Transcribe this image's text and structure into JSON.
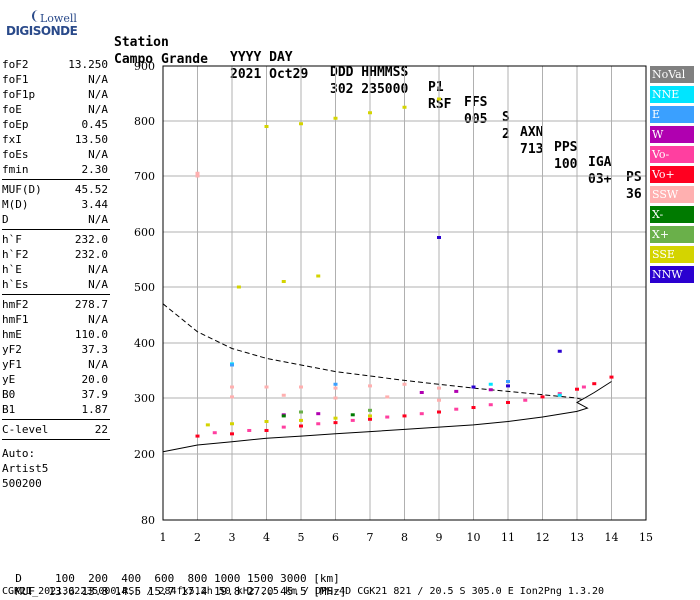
{
  "logo": {
    "line1": "Lowell",
    "line2": "DIGISONDE"
  },
  "header": {
    "cols": [
      {
        "top": "Station",
        "bottom": "Campo Grande"
      },
      {
        "top": "YYYY DAY",
        "bottom": "2021 Oct29"
      },
      {
        "top": "DDD HHMMSS",
        "bottom": "302 235000"
      },
      {
        "top": "P1",
        "bottom": "RSF"
      },
      {
        "top": "FFS",
        "bottom": "005"
      },
      {
        "top": "S",
        "bottom": "2"
      },
      {
        "top": "AXN",
        "bottom": "713"
      },
      {
        "top": "PPS",
        "bottom": "100"
      },
      {
        "top": "IGA",
        "bottom": "03+"
      },
      {
        "top": "PS",
        "bottom": "36"
      }
    ]
  },
  "params": {
    "group1": [
      {
        "k": "foF2",
        "v": "13.250"
      },
      {
        "k": "foF1",
        "v": "N/A"
      },
      {
        "k": "foF1p",
        "v": "N/A"
      },
      {
        "k": "foE",
        "v": "N/A"
      },
      {
        "k": "foEp",
        "v": "0.45"
      },
      {
        "k": "fxI",
        "v": "13.50"
      },
      {
        "k": "foEs",
        "v": "N/A"
      },
      {
        "k": "fmin",
        "v": "2.30"
      }
    ],
    "group2": [
      {
        "k": "MUF(D)",
        "v": "45.52"
      },
      {
        "k": "M(D)",
        "v": "3.44"
      },
      {
        "k": "D",
        "v": "N/A"
      }
    ],
    "group3": [
      {
        "k": "h`F",
        "v": "232.0"
      },
      {
        "k": "h`F2",
        "v": "232.0"
      },
      {
        "k": "h`E",
        "v": "N/A"
      },
      {
        "k": "h`Es",
        "v": "N/A"
      }
    ],
    "group4": [
      {
        "k": "hmF2",
        "v": "278.7"
      },
      {
        "k": "hmF1",
        "v": "N/A"
      },
      {
        "k": "hmE",
        "v": "110.0"
      },
      {
        "k": "yF2",
        "v": "37.3"
      },
      {
        "k": "yF1",
        "v": "N/A"
      },
      {
        "k": "yE",
        "v": "20.0"
      },
      {
        "k": "B0",
        "v": "37.9"
      },
      {
        "k": "B1",
        "v": "1.87"
      }
    ],
    "clevel": {
      "k": "C-level",
      "v": "22"
    },
    "auto": [
      "Auto:",
      "Artist5",
      "500200"
    ]
  },
  "legend": [
    {
      "label": "NoVal",
      "color": "#808080"
    },
    {
      "label": "NNE",
      "color": "#00e5ff"
    },
    {
      "label": "E",
      "color": "#3aa0ff"
    },
    {
      "label": "W",
      "color": "#b000b0"
    },
    {
      "label": "Vo-",
      "color": "#ff3fa0"
    },
    {
      "label": "Vo+",
      "color": "#ff0020"
    },
    {
      "label": "SSW",
      "color": "#ffb0b0"
    },
    {
      "label": "X-",
      "color": "#007a00"
    },
    {
      "label": "X+",
      "color": "#6ab04a"
    },
    {
      "label": "SSE",
      "color": "#d4d400"
    },
    {
      "label": "NNW",
      "color": "#2a00d0"
    }
  ],
  "footer": {
    "d_label": "D",
    "d_values": "100  200  400  600  800 1000 1500 3000 [km]",
    "muf_label": "MUF",
    "muf_values": "13.6 13.8 14.5 15.7 17.4 19.8 27.0 45.5 [MHz]",
    "file_line": "CGK21_2021302235000.RSF / 284fx512h 50 kHz 2.5 km / DPS-4D CGK21 821 / 20.5 S 305.0 E Ion2Png 1.3.20"
  },
  "chart_data": {
    "type": "scatter",
    "xlim": [
      1,
      15
    ],
    "ylim": [
      80,
      900
    ],
    "x_ticks": [
      1,
      2,
      3,
      4,
      5,
      6,
      7,
      8,
      9,
      10,
      11,
      12,
      13,
      14,
      15
    ],
    "y_ticks": [
      80,
      200,
      300,
      400,
      500,
      600,
      700,
      800,
      900
    ],
    "grid": true,
    "series": [
      {
        "name": "Vo+",
        "points": [
          [
            2.0,
            232
          ],
          [
            3.0,
            236
          ],
          [
            4.0,
            242
          ],
          [
            5.0,
            250
          ],
          [
            6.0,
            256
          ],
          [
            7.0,
            262
          ],
          [
            8.0,
            268
          ],
          [
            9.0,
            275
          ],
          [
            10.0,
            283
          ],
          [
            11.0,
            292
          ],
          [
            12.0,
            302
          ],
          [
            13.0,
            316
          ],
          [
            13.5,
            326
          ],
          [
            14.0,
            338
          ]
        ]
      },
      {
        "name": "Vo-",
        "points": [
          [
            2.5,
            238
          ],
          [
            3.5,
            242
          ],
          [
            4.5,
            248
          ],
          [
            5.5,
            254
          ],
          [
            6.5,
            260
          ],
          [
            7.5,
            266
          ],
          [
            8.5,
            272
          ],
          [
            9.5,
            280
          ],
          [
            10.5,
            288
          ],
          [
            11.5,
            296
          ],
          [
            12.5,
            308
          ],
          [
            13.2,
            320
          ]
        ]
      },
      {
        "name": "SSE",
        "points": [
          [
            2.3,
            252
          ],
          [
            3.0,
            254
          ],
          [
            4.0,
            258
          ],
          [
            5.0,
            260
          ],
          [
            6.0,
            264
          ],
          [
            7.0,
            268
          ],
          [
            4.0,
            790
          ],
          [
            5.0,
            795
          ],
          [
            6.0,
            805
          ],
          [
            7.0,
            815
          ],
          [
            8.0,
            825
          ],
          [
            9.0,
            840
          ],
          [
            3.2,
            500
          ],
          [
            4.5,
            510
          ],
          [
            5.5,
            520
          ]
        ]
      },
      {
        "name": "SSW",
        "points": [
          [
            3.0,
            320
          ],
          [
            4.0,
            320
          ],
          [
            5.0,
            320
          ],
          [
            6.0,
            318
          ],
          [
            7.0,
            322
          ],
          [
            8.0,
            325
          ],
          [
            9.0,
            318
          ],
          [
            3.0,
            302
          ],
          [
            4.5,
            305
          ],
          [
            6.0,
            300
          ],
          [
            7.5,
            302
          ],
          [
            9.0,
            296
          ],
          [
            2.0,
            700
          ],
          [
            2.0,
            705
          ]
        ]
      },
      {
        "name": "W",
        "points": [
          [
            8.5,
            310
          ],
          [
            9.5,
            312
          ],
          [
            10.5,
            315
          ],
          [
            4.5,
            270
          ],
          [
            5.5,
            272
          ]
        ]
      },
      {
        "name": "NNE",
        "points": [
          [
            3.0,
            362
          ],
          [
            10.5,
            325
          ],
          [
            12.5,
            305
          ]
        ]
      },
      {
        "name": "E",
        "points": [
          [
            3.0,
            360
          ],
          [
            6.0,
            325
          ],
          [
            11.0,
            330
          ]
        ]
      },
      {
        "name": "NNW",
        "points": [
          [
            10.0,
            320
          ],
          [
            11.0,
            322
          ],
          [
            12.5,
            385
          ],
          [
            9.0,
            590
          ]
        ]
      },
      {
        "name": "X-",
        "points": [
          [
            4.5,
            268
          ],
          [
            6.5,
            270
          ]
        ]
      },
      {
        "name": "X+",
        "points": [
          [
            5.0,
            275
          ],
          [
            7.0,
            278
          ]
        ]
      },
      {
        "name": "NoVal",
        "points": [
          [
            9.0,
            860
          ]
        ]
      }
    ],
    "dashed_curve": [
      [
        1.0,
        470
      ],
      [
        2.0,
        420
      ],
      [
        3.0,
        390
      ],
      [
        4.0,
        372
      ],
      [
        5.0,
        360
      ],
      [
        6.0,
        348
      ],
      [
        7.0,
        340
      ],
      [
        8.0,
        332
      ],
      [
        9.0,
        325
      ],
      [
        10.0,
        318
      ],
      [
        11.0,
        312
      ],
      [
        12.0,
        306
      ],
      [
        13.0,
        300
      ],
      [
        13.2,
        296
      ]
    ],
    "solid_curve": [
      [
        1.0,
        204
      ],
      [
        2.0,
        216
      ],
      [
        3.0,
        222
      ],
      [
        4.0,
        228
      ],
      [
        5.0,
        232
      ],
      [
        6.0,
        236
      ],
      [
        7.0,
        240
      ],
      [
        8.0,
        244
      ],
      [
        9.0,
        248
      ],
      [
        10.0,
        252
      ],
      [
        11.0,
        258
      ],
      [
        12.0,
        266
      ],
      [
        13.0,
        276
      ],
      [
        13.3,
        282
      ],
      [
        13.0,
        292
      ],
      [
        13.5,
        310
      ],
      [
        14.0,
        330
      ]
    ]
  }
}
